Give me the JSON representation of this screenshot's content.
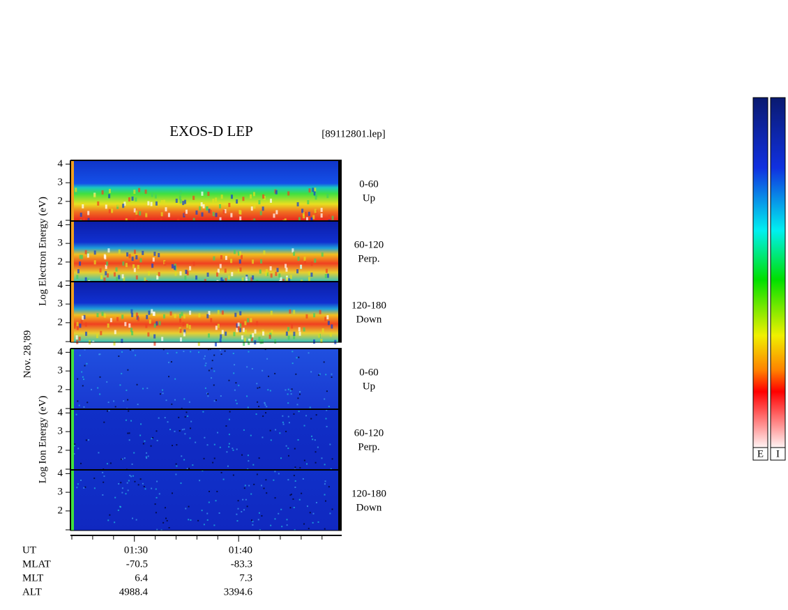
{
  "chart_data": {
    "type": "spectrogram",
    "title": "EXOS-D LEP",
    "file": "[89112801.lep]",
    "date": "Nov. 28,'89",
    "ylim": [
      0.95,
      4.2
    ],
    "yticks": [
      2,
      3,
      4
    ],
    "groups": [
      {
        "label": "Log  Electron  Energy (eV)",
        "panels": [
          {
            "angle": "0-60",
            "direction": "Up"
          },
          {
            "angle": "60-120",
            "direction": "Perp."
          },
          {
            "angle": "120-180",
            "direction": "Down"
          }
        ]
      },
      {
        "label": "Log  Ion  Energy (eV)",
        "panels": [
          {
            "angle": "0-60",
            "direction": "Up"
          },
          {
            "angle": "60-120",
            "direction": "Perp."
          },
          {
            "angle": "120-180",
            "direction": "Down"
          }
        ]
      }
    ],
    "orbit": [
      {
        "label": "UT",
        "values": [
          "01:30",
          "01:40"
        ]
      },
      {
        "label": "MLAT",
        "values": [
          -70.5,
          -83.3
        ]
      },
      {
        "label": "MLT",
        "values": [
          6.4,
          7.3
        ]
      },
      {
        "label": "ALT",
        "values": [
          4988.4,
          3394.6
        ]
      }
    ],
    "colorbars": [
      "E",
      "I"
    ]
  }
}
